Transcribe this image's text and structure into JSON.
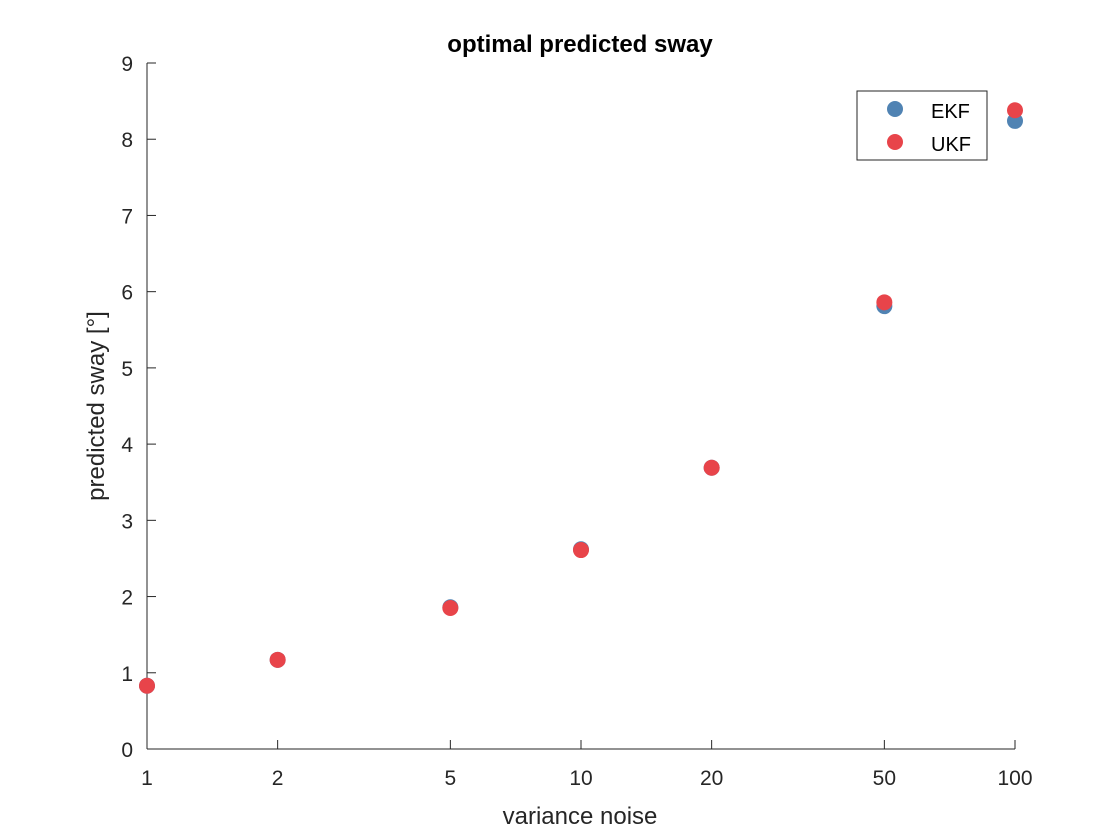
{
  "chart_data": {
    "type": "scatter",
    "title": "optimal predicted sway",
    "xlabel": "variance noise",
    "ylabel": "predicted sway [°]",
    "x": [
      "1",
      "2",
      "5",
      "10",
      "20",
      "50",
      "100"
    ],
    "xticks": [
      "1",
      "2",
      "5",
      "10",
      "20",
      "50",
      "100"
    ],
    "yticks": [
      "0",
      "1",
      "2",
      "3",
      "4",
      "5",
      "6",
      "7",
      "8",
      "9"
    ],
    "ylim": [
      0,
      9
    ],
    "grid": false,
    "legend_position": "top-right",
    "series": [
      {
        "name": "EKF",
        "color": "#5083B3",
        "values": [
          0.83,
          1.17,
          1.86,
          2.62,
          3.69,
          5.81,
          8.24
        ]
      },
      {
        "name": "UKF",
        "color": "#E8444A",
        "values": [
          0.83,
          1.17,
          1.85,
          2.61,
          3.69,
          5.86,
          8.38
        ]
      }
    ]
  }
}
